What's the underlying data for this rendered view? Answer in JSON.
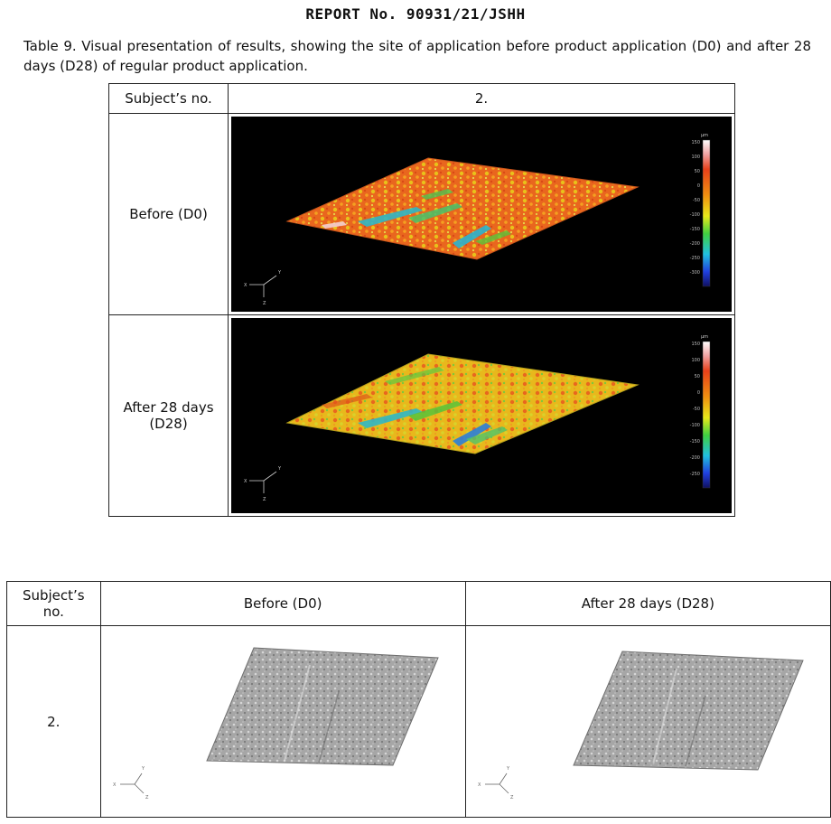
{
  "report_title": "REPORT No. 90931/21/JSHH",
  "caption": "Table 9. Visual presentation of results, showing the site of application before product application (D0) and after 28 days (D28) of regular product application.",
  "table1": {
    "header_label": "Subject’s no.",
    "subject": "2.",
    "rows": [
      {
        "label": "Before (D0)",
        "scale_ticks": [
          "150",
          "100",
          "50",
          "0",
          "-50",
          "-100",
          "-150",
          "-200",
          "-250",
          "-300"
        ],
        "scale_unit": "µm"
      },
      {
        "label": "After 28 days (D28)",
        "scale_ticks": [
          "150",
          "100",
          "50",
          "0",
          "-50",
          "-100",
          "-150",
          "-200",
          "-250"
        ],
        "scale_unit": "µm"
      }
    ]
  },
  "table2": {
    "header_label": "Subject’s no.",
    "col_before": "Before (D0)",
    "col_after": "After 28 days (D28)",
    "subject": "2."
  },
  "axis_labels": {
    "x": "X",
    "y": "Y",
    "z": "Z"
  },
  "colors": {
    "surface_warm": "#e9611c",
    "surface_yellow": "#e8c21a",
    "surface_green": "#57c23a",
    "surface_cyan": "#29b8c8",
    "surface_gray": "#9a9a9a"
  }
}
